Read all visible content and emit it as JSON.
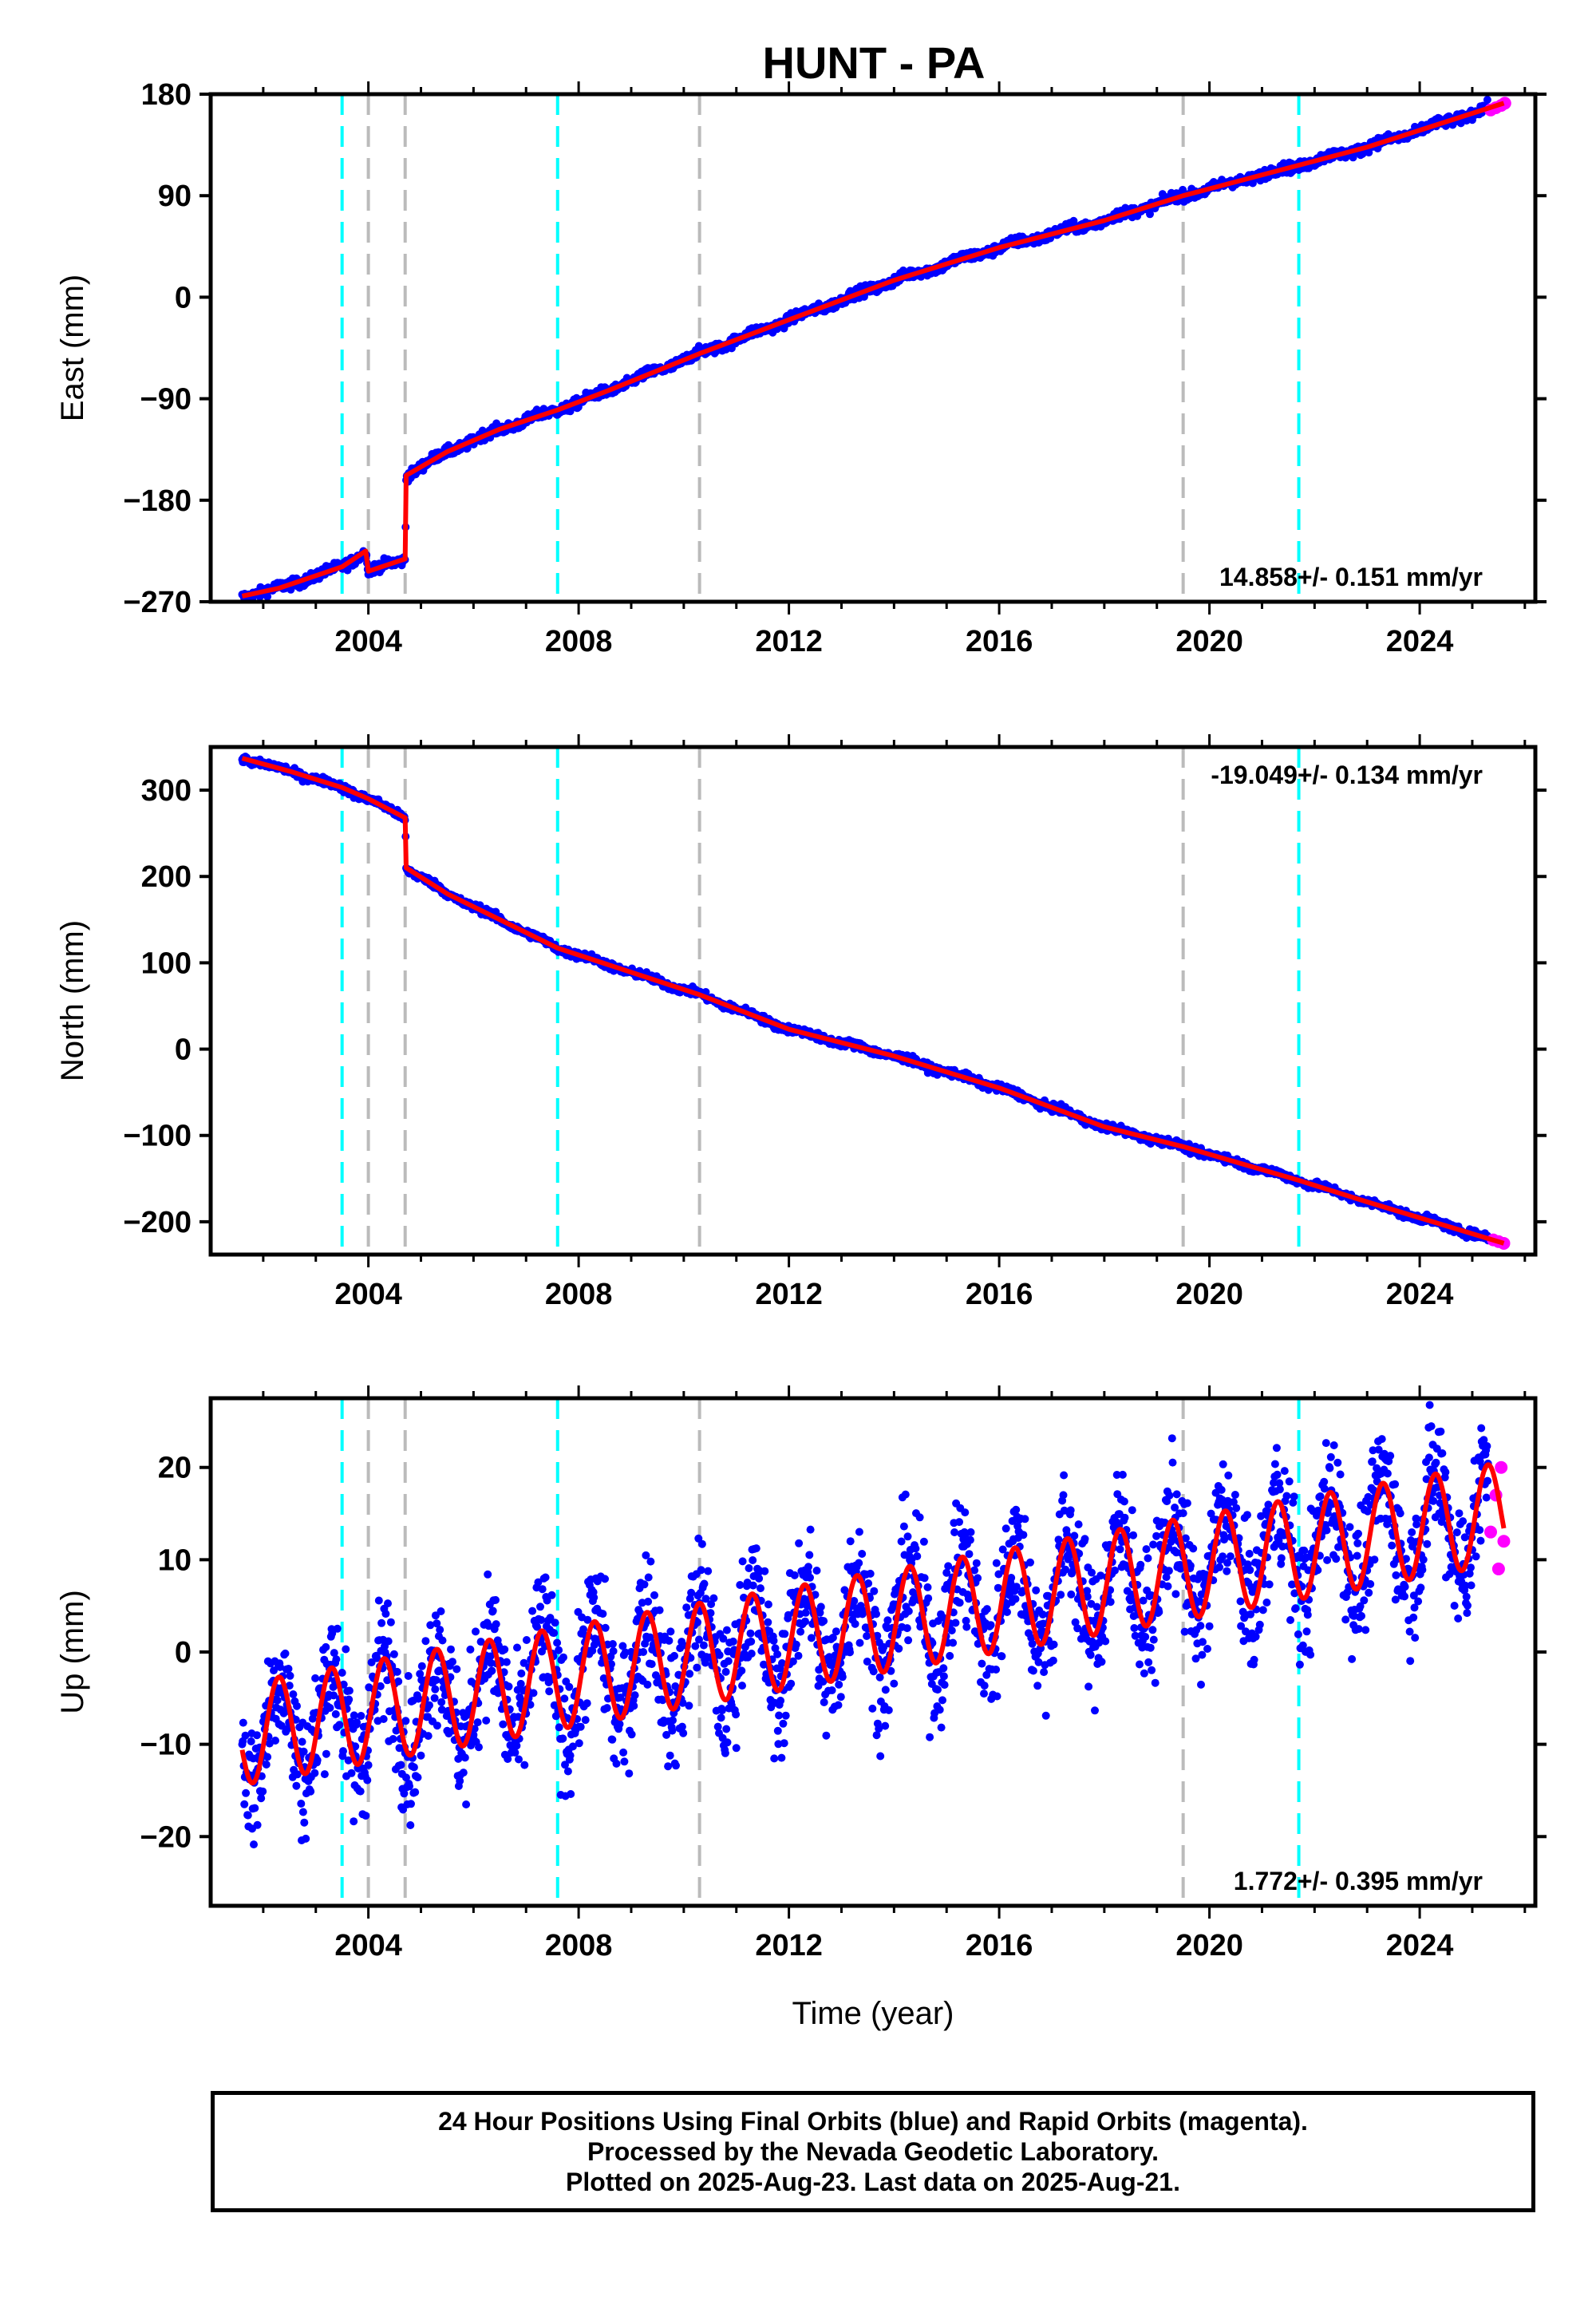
{
  "colors": {
    "final_orbits": "#0000ff",
    "rapid_orbits": "#ff00ff",
    "model_fit": "#ff0000",
    "equipment_change": "#00ffff",
    "other_offset": "#bbbbbb"
  },
  "title": "HUNT - PA",
  "footer": {
    "line1": "24 Hour Positions Using Final Orbits (blue) and Rapid Orbits (magenta).",
    "line2": "Processed by the Nevada Geodetic Laboratory.",
    "line3": "Plotted on 2025-Aug-23. Last data on 2025-Aug-21."
  },
  "chart_data": [
    {
      "type": "scatter",
      "component": "east",
      "title": "HUNT - PA",
      "ylabel": "East (mm)",
      "xlabel": "",
      "xlim": [
        2001.0,
        2026.2
      ],
      "ylim": [
        -270,
        180
      ],
      "yticks": [
        -270,
        -180,
        -90,
        0,
        90,
        180
      ],
      "xticks": [
        2004,
        2008,
        2012,
        2016,
        2020,
        2024
      ],
      "rate_text": "14.858+/- 0.151 mm/yr",
      "rate_position": "bottom-right",
      "grid": false,
      "equipment_changes": [
        2003.5,
        2007.6,
        2021.7
      ],
      "other_offsets": [
        2004.0,
        2004.7,
        2010.3,
        2019.5
      ],
      "fit_points": [
        [
          2001.6,
          -265
        ],
        [
          2002.3,
          -258
        ],
        [
          2003.5,
          -239
        ],
        [
          2003.95,
          -225
        ],
        [
          2004.0,
          -243
        ],
        [
          2004.7,
          -232
        ],
        [
          2004.72,
          -158
        ],
        [
          2005.5,
          -137
        ],
        [
          2006.5,
          -117
        ],
        [
          2007.6,
          -100
        ],
        [
          2008.5,
          -84
        ],
        [
          2010.3,
          -50
        ],
        [
          2012.0,
          -20
        ],
        [
          2014.0,
          15
        ],
        [
          2016.0,
          44
        ],
        [
          2018.0,
          68
        ],
        [
          2019.5,
          90
        ],
        [
          2021.7,
          117
        ],
        [
          2023.0,
          133
        ],
        [
          2025.6,
          172
        ]
      ],
      "rapid_points": [
        [
          2025.35,
          166
        ],
        [
          2025.45,
          168
        ],
        [
          2025.55,
          170
        ],
        [
          2025.62,
          172
        ]
      ]
    },
    {
      "type": "scatter",
      "component": "north",
      "ylabel": "North (mm)",
      "xlabel": "",
      "xlim": [
        2001.0,
        2026.2
      ],
      "ylim": [
        -238,
        350
      ],
      "yticks": [
        -200,
        -100,
        0,
        100,
        200,
        300
      ],
      "xticks": [
        2004,
        2008,
        2012,
        2016,
        2020,
        2024
      ],
      "rate_text": "-19.049+/- 0.134 mm/yr",
      "rate_position": "top-right",
      "grid": false,
      "equipment_changes": [
        2003.5,
        2007.6,
        2021.7
      ],
      "other_offsets": [
        2004.0,
        2004.7,
        2010.3,
        2019.5
      ],
      "fit_points": [
        [
          2001.6,
          337
        ],
        [
          2002.5,
          322
        ],
        [
          2003.5,
          303
        ],
        [
          2004.0,
          290
        ],
        [
          2004.7,
          268
        ],
        [
          2004.72,
          210
        ],
        [
          2005.5,
          180
        ],
        [
          2007.6,
          117
        ],
        [
          2010.3,
          63
        ],
        [
          2012.0,
          23
        ],
        [
          2014.0,
          -8
        ],
        [
          2016.0,
          -45
        ],
        [
          2018.0,
          -90
        ],
        [
          2019.5,
          -113
        ],
        [
          2021.7,
          -152
        ],
        [
          2023.0,
          -177
        ],
        [
          2025.6,
          -225
        ]
      ],
      "rapid_points": [
        [
          2025.4,
          -221
        ],
        [
          2025.5,
          -223
        ],
        [
          2025.6,
          -225
        ]
      ]
    },
    {
      "type": "scatter",
      "component": "up",
      "ylabel": "Up (mm)",
      "xlabel": "Time (year)",
      "xlim": [
        2001.0,
        2026.2
      ],
      "ylim": [
        -27.5,
        27.5
      ],
      "yticks": [
        -20,
        -10,
        0,
        10,
        20
      ],
      "xticks": [
        2004,
        2008,
        2012,
        2016,
        2020,
        2024
      ],
      "rate_text": "1.772+/- 0.395 mm/yr",
      "rate_position": "bottom-right",
      "grid": false,
      "equipment_changes": [
        2003.5,
        2007.6,
        2021.7
      ],
      "other_offsets": [
        2004.0,
        2004.7,
        2010.3,
        2019.5
      ],
      "model": {
        "intercept_2001_5": -9.0,
        "rate_mm_yr": 1.0,
        "annual_amplitude": 5.5,
        "annual_peak_fraction": 0.3,
        "noise": 3.5
      },
      "rapid_points": [
        [
          2025.35,
          13
        ],
        [
          2025.45,
          17
        ],
        [
          2025.5,
          9
        ],
        [
          2025.55,
          20
        ],
        [
          2025.6,
          12
        ]
      ]
    }
  ]
}
